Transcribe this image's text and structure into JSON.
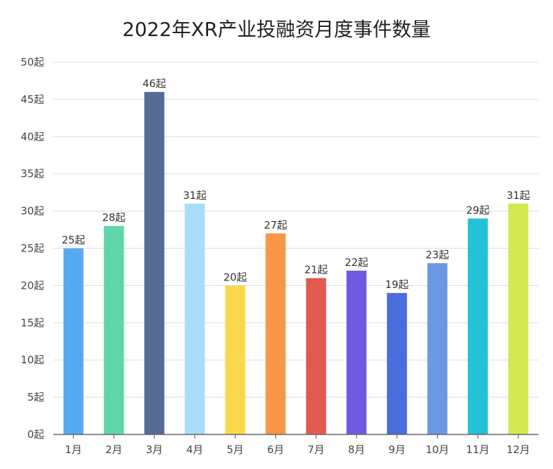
{
  "chart_data": {
    "type": "bar",
    "title": "2022年XR产业投融资月度事件数量",
    "xlabel": "",
    "ylabel": "",
    "unit_suffix": "起",
    "categories": [
      "1月",
      "2月",
      "3月",
      "4月",
      "5月",
      "6月",
      "7月",
      "8月",
      "9月",
      "10月",
      "11月",
      "12月"
    ],
    "values": [
      25,
      28,
      46,
      31,
      20,
      27,
      21,
      22,
      19,
      23,
      29,
      31
    ],
    "data_labels": [
      "25起",
      "28起",
      "46起",
      "31起",
      "20起",
      "27起",
      "21起",
      "22起",
      "19起",
      "23起",
      "29起",
      "31起"
    ],
    "colors": [
      "#57A9F0",
      "#5ED6A9",
      "#566A96",
      "#A8DCF7",
      "#F9D94C",
      "#FA9549",
      "#E2594F",
      "#6E5BE0",
      "#4A6CDD",
      "#6B97E5",
      "#22C2D8",
      "#D3E751"
    ],
    "ylim": [
      0,
      50
    ],
    "yticks": [
      0,
      5,
      10,
      15,
      20,
      25,
      30,
      35,
      40,
      45,
      50
    ],
    "ytick_labels": [
      "0起",
      "5起",
      "10起",
      "15起",
      "20起",
      "25起",
      "30起",
      "35起",
      "40起",
      "45起",
      "50起"
    ],
    "grid": true,
    "legend": "none"
  }
}
